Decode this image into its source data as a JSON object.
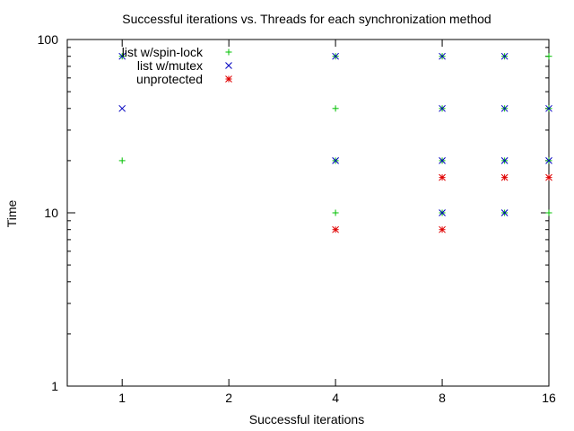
{
  "chart_data": {
    "type": "scatter",
    "title": "Successful iterations vs. Threads for each synchronization method",
    "xlabel": "Successful iterations",
    "ylabel": "Time",
    "x_scale": "log2",
    "y_scale": "log10",
    "xlim": [
      0.7,
      16
    ],
    "ylim": [
      1,
      100
    ],
    "x_ticks": [
      1,
      2,
      4,
      8,
      16
    ],
    "x_tick_labels": [
      "1",
      "2",
      "4",
      "8",
      "16"
    ],
    "y_ticks": [
      1,
      10,
      100
    ],
    "y_tick_labels": [
      "1",
      "10",
      "100"
    ],
    "grid": false,
    "legend_position": "top-left",
    "series": [
      {
        "name": "list w/spin-lock",
        "color": "#00c000",
        "marker": "plus",
        "points": [
          [
            1,
            80
          ],
          [
            1,
            20
          ],
          [
            4,
            80
          ],
          [
            4,
            40
          ],
          [
            4,
            20
          ],
          [
            4,
            10
          ],
          [
            8,
            80
          ],
          [
            8,
            40
          ],
          [
            8,
            20
          ],
          [
            8,
            10
          ],
          [
            12,
            80
          ],
          [
            12,
            40
          ],
          [
            12,
            20
          ],
          [
            12,
            10
          ],
          [
            16,
            80
          ],
          [
            16,
            40
          ],
          [
            16,
            20
          ],
          [
            16,
            10
          ]
        ]
      },
      {
        "name": "list w/mutex",
        "color": "#0000c0",
        "marker": "cross",
        "points": [
          [
            1,
            80
          ],
          [
            1,
            40
          ],
          [
            4,
            80
          ],
          [
            4,
            20
          ],
          [
            8,
            80
          ],
          [
            8,
            40
          ],
          [
            8,
            20
          ],
          [
            8,
            10
          ],
          [
            12,
            80
          ],
          [
            12,
            40
          ],
          [
            12,
            20
          ],
          [
            12,
            10
          ],
          [
            16,
            40
          ],
          [
            16,
            20
          ]
        ]
      },
      {
        "name": "unprotected",
        "color": "#e00000",
        "marker": "star",
        "points": [
          [
            4,
            8
          ],
          [
            8,
            16
          ],
          [
            8,
            8
          ],
          [
            12,
            16
          ],
          [
            16,
            16
          ]
        ]
      }
    ]
  }
}
